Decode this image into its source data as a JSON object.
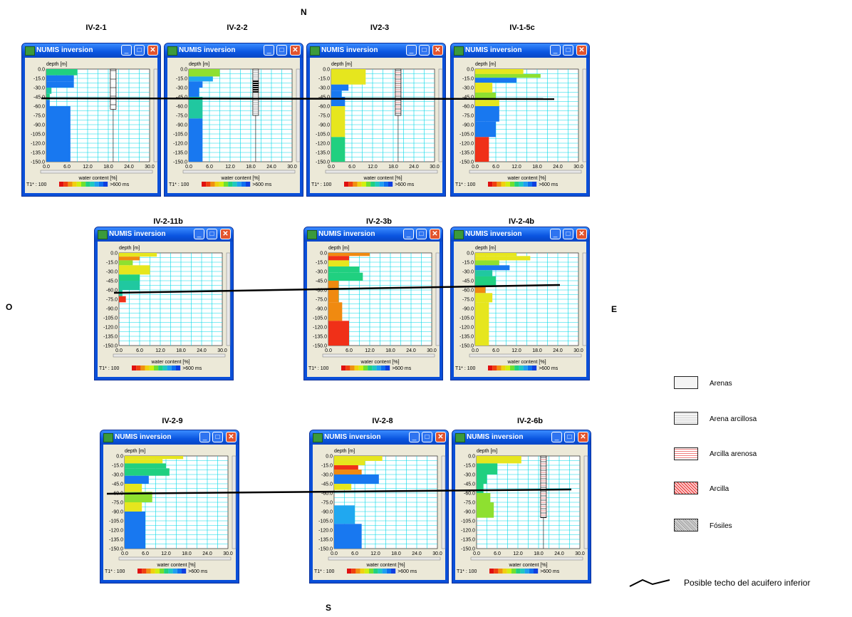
{
  "compass": {
    "n": "N",
    "s": "S",
    "e": "E",
    "o": "O"
  },
  "window_title": "NUMIS inversion",
  "axis": {
    "ylabel": "depth [m]",
    "xlabel": "water content [%]",
    "t1_label": "T1* : 100",
    "t1_end": ">600 ms",
    "yticks": [
      "0.0",
      "-15.0",
      "-30.0",
      "-45.0",
      "-60.0",
      "-75.0",
      "-90.0",
      "-105.0",
      "-120.0",
      "-135.0",
      "-150.0"
    ],
    "xticks": [
      "0.0",
      "6.0",
      "12.0",
      "18.0",
      "24.0",
      "30.0"
    ]
  },
  "colors": {
    "cyan_grid": "#00d8e8",
    "red": "#f03018",
    "orange": "#f08a10",
    "yellow": "#e6e61e",
    "lightgreen": "#8ee030",
    "green": "#20d080",
    "teal": "#20c8a0",
    "blue": "#1878f0",
    "lightblue": "#20a8f0"
  },
  "panels": [
    {
      "id": "p1",
      "label": "IV-2-1",
      "bars": [
        [
          0,
          10,
          9,
          "green"
        ],
        [
          10,
          20,
          8,
          "blue"
        ],
        [
          20,
          30,
          8,
          "blue"
        ],
        [
          30,
          40,
          1.5,
          "teal"
        ],
        [
          40,
          50,
          1,
          "green"
        ],
        [
          50,
          60,
          1,
          "blue"
        ],
        [
          60,
          150,
          7,
          "blue"
        ]
      ],
      "column": {
        "from": 0,
        "to": 65,
        "pattern": "arena"
      }
    },
    {
      "id": "p2",
      "label": "IV-2-2",
      "bars": [
        [
          0,
          12,
          9,
          "lightgreen"
        ],
        [
          12,
          20,
          7,
          "lightblue"
        ],
        [
          20,
          30,
          4,
          "blue"
        ],
        [
          30,
          45,
          3,
          "blue"
        ],
        [
          45,
          60,
          4,
          "teal"
        ],
        [
          60,
          80,
          4,
          "teal"
        ],
        [
          80,
          150,
          4,
          "blue"
        ]
      ],
      "column": {
        "from": 0,
        "to": 75,
        "pattern": "mixed"
      }
    },
    {
      "id": "p3",
      "label": "IV2-3",
      "bars": [
        [
          0,
          25,
          10,
          "yellow"
        ],
        [
          25,
          35,
          5,
          "blue"
        ],
        [
          35,
          45,
          3,
          "blue"
        ],
        [
          45,
          60,
          4,
          "blue"
        ],
        [
          60,
          75,
          4,
          "yellow"
        ],
        [
          75,
          110,
          4,
          "yellow"
        ],
        [
          110,
          150,
          4,
          "green"
        ]
      ],
      "column": {
        "from": 0,
        "to": 75,
        "pattern": "arcilla"
      }
    },
    {
      "id": "p4",
      "label": "IV-1-5c",
      "bars": [
        [
          0,
          8,
          14,
          "yellow"
        ],
        [
          8,
          14,
          19,
          "lightgreen"
        ],
        [
          14,
          22,
          12,
          "blue"
        ],
        [
          22,
          38,
          5,
          "yellow"
        ],
        [
          38,
          50,
          6,
          "lightgreen"
        ],
        [
          50,
          60,
          7,
          "yellow"
        ],
        [
          60,
          85,
          7,
          "blue"
        ],
        [
          85,
          110,
          6,
          "blue"
        ],
        [
          110,
          150,
          4,
          "red"
        ]
      ],
      "column": null
    },
    {
      "id": "p5",
      "label": "IV-2-11b",
      "bars": [
        [
          0,
          6,
          11,
          "yellow"
        ],
        [
          6,
          12,
          6,
          "orange"
        ],
        [
          12,
          20,
          4,
          "lightgreen"
        ],
        [
          20,
          35,
          9,
          "yellow"
        ],
        [
          35,
          45,
          6,
          "green"
        ],
        [
          45,
          60,
          6,
          "teal"
        ],
        [
          60,
          70,
          1,
          "teal"
        ],
        [
          70,
          80,
          2,
          "red"
        ]
      ],
      "column": null
    },
    {
      "id": "p6",
      "label": "IV-2-3b",
      "bars": [
        [
          0,
          5,
          12,
          "orange"
        ],
        [
          5,
          12,
          6,
          "red"
        ],
        [
          12,
          22,
          6,
          "yellow"
        ],
        [
          22,
          32,
          9,
          "green"
        ],
        [
          32,
          45,
          10,
          "green"
        ],
        [
          45,
          60,
          3,
          "orange"
        ],
        [
          60,
          80,
          3,
          "orange"
        ],
        [
          80,
          110,
          4,
          "orange"
        ],
        [
          110,
          150,
          6,
          "red"
        ]
      ],
      "column": null
    },
    {
      "id": "p7",
      "label": "IV-2-4b",
      "bars": [
        [
          0,
          5,
          12,
          "yellow"
        ],
        [
          5,
          12,
          16,
          "yellow"
        ],
        [
          12,
          20,
          7,
          "lightgreen"
        ],
        [
          20,
          28,
          10,
          "blue"
        ],
        [
          28,
          38,
          5,
          "teal"
        ],
        [
          38,
          55,
          6,
          "green"
        ],
        [
          55,
          65,
          3,
          "orange"
        ],
        [
          65,
          80,
          5,
          "yellow"
        ],
        [
          80,
          150,
          4,
          "yellow"
        ]
      ],
      "column": null
    },
    {
      "id": "p8",
      "label": "IV-2-9",
      "bars": [
        [
          0,
          5,
          17,
          "yellow"
        ],
        [
          5,
          12,
          11,
          "yellow"
        ],
        [
          12,
          20,
          12,
          "green"
        ],
        [
          20,
          32,
          13,
          "green"
        ],
        [
          32,
          45,
          7,
          "blue"
        ],
        [
          45,
          58,
          5,
          "yellow"
        ],
        [
          58,
          75,
          8,
          "lightgreen"
        ],
        [
          75,
          90,
          5,
          "yellow"
        ],
        [
          90,
          150,
          6,
          "blue"
        ]
      ],
      "column": null
    },
    {
      "id": "p9",
      "label": "IV-2-8",
      "bars": [
        [
          0,
          8,
          14,
          "yellow"
        ],
        [
          8,
          15,
          9,
          "yellow"
        ],
        [
          15,
          22,
          7,
          "red"
        ],
        [
          22,
          30,
          8,
          "orange"
        ],
        [
          30,
          45,
          13,
          "blue"
        ],
        [
          45,
          55,
          5,
          "yellow"
        ],
        [
          55,
          80,
          0,
          "blue"
        ],
        [
          80,
          110,
          6,
          "lightblue"
        ],
        [
          110,
          150,
          8,
          "blue"
        ]
      ],
      "column": null
    },
    {
      "id": "p10",
      "label": "IV-2-6b",
      "bars": [
        [
          0,
          12,
          13,
          "yellow"
        ],
        [
          12,
          30,
          6,
          "green"
        ],
        [
          30,
          45,
          3,
          "green"
        ],
        [
          45,
          60,
          2,
          "green"
        ],
        [
          60,
          75,
          4,
          "lightgreen"
        ],
        [
          75,
          100,
          5,
          "lightgreen"
        ]
      ],
      "column": {
        "from": 0,
        "to": 100,
        "pattern": "arcilla2"
      }
    }
  ],
  "legend": {
    "items": [
      {
        "label": "Arenas",
        "pattern": "arena"
      },
      {
        "label": "Arena arcillosa",
        "pattern": "arenaarc"
      },
      {
        "label": "Arcilla arenosa",
        "pattern": "arcarenosa"
      },
      {
        "label": "Arcilla",
        "pattern": "arcilla"
      },
      {
        "label": "Fósiles",
        "pattern": "fosiles"
      }
    ],
    "line_label": "Posible techo del acuifero inferior"
  }
}
